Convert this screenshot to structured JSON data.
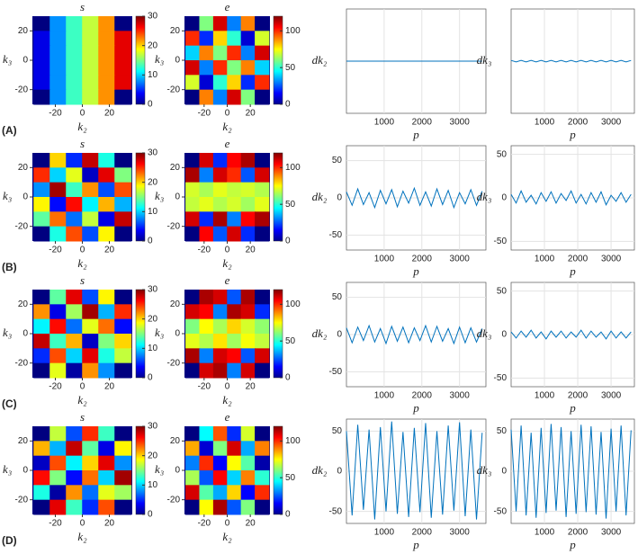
{
  "row_labels": [
    "(A)",
    "(B)",
    "(C)",
    "(D)"
  ],
  "chart_data": [
    {
      "type": "heatmap",
      "title": "s",
      "xlabel": "k₂",
      "ylabel": "k₃",
      "x": [
        -30,
        -18,
        -6,
        6,
        18,
        30
      ],
      "y": [
        25,
        15,
        5,
        -5,
        -15,
        -25
      ],
      "z": [
        [
          0,
          8,
          13,
          17,
          22,
          0
        ],
        [
          3,
          8,
          13,
          17,
          22,
          27
        ],
        [
          3,
          8,
          13,
          17,
          22,
          27
        ],
        [
          3,
          8,
          13,
          17,
          22,
          27
        ],
        [
          3,
          8,
          13,
          17,
          22,
          27
        ],
        [
          0,
          8,
          13,
          17,
          22,
          0
        ]
      ],
      "xlim": [
        -37,
        37
      ],
      "ylim": [
        -30,
        30
      ],
      "xticks": [
        -20,
        0,
        20
      ],
      "yticks": [
        -20,
        0,
        20
      ],
      "clim": [
        0,
        30
      ],
      "cticks": [
        0,
        10,
        20,
        30
      ]
    },
    {
      "type": "heatmap",
      "title": "e",
      "xlabel": "k₂",
      "ylabel": "k₃",
      "x": [
        -30,
        -18,
        -6,
        6,
        18,
        30
      ],
      "y": [
        25,
        15,
        5,
        -5,
        -15,
        -25
      ],
      "z": [
        [
          0,
          60,
          110,
          30,
          90,
          0
        ],
        [
          100,
          20,
          80,
          50,
          10,
          70
        ],
        [
          40,
          90,
          60,
          100,
          30,
          110
        ],
        [
          110,
          30,
          100,
          60,
          90,
          40
        ],
        [
          70,
          10,
          50,
          80,
          20,
          100
        ],
        [
          0,
          90,
          30,
          110,
          60,
          0
        ]
      ],
      "xlim": [
        -37,
        37
      ],
      "ylim": [
        -30,
        30
      ],
      "xticks": [
        -20,
        0,
        20
      ],
      "yticks": [
        -20,
        0,
        20
      ],
      "clim": [
        0,
        120
      ],
      "cticks": [
        0,
        50,
        100
      ]
    },
    {
      "type": "line",
      "xlabel": "p",
      "ylabel": "dk₂",
      "x": [
        0,
        150,
        300,
        450,
        600,
        750,
        900,
        1050,
        1200,
        1350,
        1500,
        1650,
        1800,
        1950,
        2100,
        2250,
        2400,
        2550,
        2700,
        2850,
        3000,
        3150,
        3300,
        3450,
        3600
      ],
      "values": [
        0,
        0,
        0,
        0,
        0,
        0,
        0,
        0,
        0,
        0,
        0,
        0,
        0,
        0,
        0,
        0,
        0,
        0,
        0,
        0,
        0,
        0,
        0,
        0,
        0
      ],
      "color": "#0072bd",
      "xlim": [
        0,
        3700
      ],
      "ylim": [
        -70,
        70
      ],
      "xticks": [
        1000,
        2000,
        3000
      ],
      "grid": true
    },
    {
      "type": "line",
      "xlabel": "p",
      "ylabel": "dk₃",
      "x": [
        0,
        150,
        300,
        450,
        600,
        750,
        900,
        1050,
        1200,
        1350,
        1500,
        1650,
        1800,
        1950,
        2100,
        2250,
        2400,
        2550,
        2700,
        2850,
        3000,
        3150,
        3300,
        3450,
        3600
      ],
      "values": [
        1,
        -1,
        1,
        -1,
        1,
        -1,
        1,
        -1,
        1,
        -1,
        1,
        -1,
        1,
        -1,
        1,
        -1,
        1,
        -1,
        1,
        -1,
        1,
        -1,
        1,
        -1,
        1
      ],
      "color": "#0072bd",
      "xlim": [
        0,
        3700
      ],
      "ylim": [
        -70,
        70
      ],
      "xticks": [
        1000,
        2000,
        3000
      ],
      "grid": true
    },
    {
      "type": "heatmap",
      "title": "s",
      "xlabel": "k₂",
      "ylabel": "k₃",
      "x": [
        -30,
        -18,
        -6,
        6,
        18,
        30
      ],
      "y": [
        25,
        15,
        5,
        -5,
        -15,
        -25
      ],
      "z": [
        [
          0,
          20,
          5,
          28,
          12,
          0
        ],
        [
          25,
          10,
          18,
          2,
          27,
          15
        ],
        [
          8,
          29,
          13,
          22,
          6,
          24
        ],
        [
          19,
          4,
          26,
          11,
          21,
          9
        ],
        [
          14,
          23,
          7,
          17,
          3,
          28
        ],
        [
          0,
          12,
          24,
          6,
          19,
          0
        ]
      ],
      "xlim": [
        -37,
        37
      ],
      "ylim": [
        -30,
        30
      ],
      "xticks": [
        -20,
        0,
        20
      ],
      "yticks": [
        -20,
        0,
        20
      ],
      "clim": [
        0,
        30
      ],
      "cticks": [
        0,
        10,
        20,
        30
      ]
    },
    {
      "type": "heatmap",
      "title": "e",
      "xlabel": "k₂",
      "ylabel": "k₃",
      "x": [
        -30,
        -18,
        -6,
        6,
        18,
        30
      ],
      "y": [
        25,
        15,
        5,
        -5,
        -15,
        -25
      ],
      "z": [
        [
          0,
          110,
          20,
          105,
          115,
          0
        ],
        [
          115,
          30,
          110,
          100,
          25,
          110
        ],
        [
          70,
          65,
          72,
          68,
          70,
          66
        ],
        [
          68,
          72,
          66,
          70,
          64,
          72
        ],
        [
          110,
          20,
          115,
          30,
          105,
          115
        ],
        [
          0,
          105,
          25,
          110,
          20,
          0
        ]
      ],
      "xlim": [
        -37,
        37
      ],
      "ylim": [
        -30,
        30
      ],
      "xticks": [
        -20,
        0,
        20
      ],
      "yticks": [
        -20,
        0,
        20
      ],
      "clim": [
        0,
        120
      ],
      "cticks": [
        0,
        50,
        100
      ]
    },
    {
      "type": "line",
      "xlabel": "p",
      "ylabel": "dk₂",
      "x": [
        0,
        150,
        300,
        450,
        600,
        750,
        900,
        1050,
        1200,
        1350,
        1500,
        1650,
        1800,
        1950,
        2100,
        2250,
        2400,
        2550,
        2700,
        2850,
        3000,
        3150,
        3300,
        3450,
        3600
      ],
      "values": [
        8,
        -10,
        12,
        -9,
        7,
        -13,
        10,
        -8,
        11,
        -12,
        9,
        -7,
        13,
        -10,
        8,
        -11,
        12,
        -9,
        10,
        -13,
        7,
        -8,
        11,
        -10,
        9
      ],
      "color": "#0072bd",
      "xlim": [
        0,
        3700
      ],
      "ylim": [
        -70,
        70
      ],
      "xticks": [
        1000,
        2000,
        3000
      ],
      "yticks": [
        -50,
        0,
        50
      ],
      "grid": true
    },
    {
      "type": "line",
      "xlabel": "p",
      "ylabel": "dk₃",
      "x": [
        0,
        150,
        300,
        450,
        600,
        750,
        900,
        1050,
        1200,
        1350,
        1500,
        1650,
        1800,
        1950,
        2100,
        2250,
        2400,
        2550,
        2700,
        2850,
        3000,
        3150,
        3300,
        3450,
        3600
      ],
      "values": [
        4,
        -6,
        8,
        -5,
        3,
        -7,
        6,
        -4,
        7,
        -6,
        5,
        -3,
        8,
        -6,
        4,
        -7,
        6,
        -5,
        7,
        -8,
        3,
        -4,
        6,
        -5,
        4
      ],
      "color": "#0072bd",
      "xlim": [
        0,
        3700
      ],
      "ylim": [
        -60,
        60
      ],
      "xticks": [
        1000,
        2000,
        3000
      ],
      "yticks": [
        -50,
        0,
        50
      ],
      "grid": true
    },
    {
      "type": "heatmap",
      "title": "s",
      "xlabel": "k₂",
      "ylabel": "k₃",
      "x": [
        -30,
        -18,
        -6,
        6,
        18,
        30
      ],
      "y": [
        25,
        15,
        5,
        -5,
        -15,
        -25
      ],
      "z": [
        [
          0,
          14,
          27,
          6,
          19,
          0
        ],
        [
          22,
          3,
          16,
          29,
          9,
          25
        ],
        [
          11,
          26,
          7,
          18,
          23,
          4
        ],
        [
          28,
          13,
          21,
          2,
          15,
          20
        ],
        [
          5,
          24,
          10,
          27,
          12,
          17
        ],
        [
          0,
          18,
          1,
          22,
          8,
          0
        ]
      ],
      "xlim": [
        -37,
        37
      ],
      "ylim": [
        -30,
        30
      ],
      "xticks": [
        -20,
        0,
        20
      ],
      "yticks": [
        -20,
        0,
        20
      ],
      "clim": [
        0,
        30
      ],
      "cticks": [
        0,
        10,
        20,
        30
      ]
    },
    {
      "type": "heatmap",
      "title": "e",
      "xlabel": "k₂",
      "ylabel": "k₃",
      "x": [
        -30,
        -18,
        -6,
        6,
        18,
        30
      ],
      "y": [
        25,
        15,
        5,
        -5,
        -15,
        -25
      ],
      "z": [
        [
          0,
          115,
          110,
          25,
          115,
          0
        ],
        [
          110,
          105,
          30,
          115,
          110,
          20
        ],
        [
          60,
          75,
          65,
          80,
          70,
          62
        ],
        [
          72,
          66,
          78,
          64,
          74,
          68
        ],
        [
          115,
          30,
          110,
          105,
          25,
          110
        ],
        [
          0,
          110,
          115,
          30,
          110,
          0
        ]
      ],
      "xlim": [
        -37,
        37
      ],
      "ylim": [
        -30,
        30
      ],
      "xticks": [
        -20,
        0,
        20
      ],
      "yticks": [
        -20,
        0,
        20
      ],
      "clim": [
        0,
        120
      ],
      "cticks": [
        0,
        50,
        100
      ]
    },
    {
      "type": "line",
      "xlabel": "p",
      "ylabel": "dk₂",
      "x": [
        0,
        150,
        300,
        450,
        600,
        750,
        900,
        1050,
        1200,
        1350,
        1500,
        1650,
        1800,
        1950,
        2100,
        2250,
        2400,
        2550,
        2700,
        2850,
        3000,
        3150,
        3300,
        3450,
        3600
      ],
      "values": [
        9,
        -11,
        10,
        -8,
        12,
        -10,
        8,
        -12,
        11,
        -9,
        10,
        -11,
        9,
        -8,
        12,
        -10,
        11,
        -9,
        8,
        -12,
        10,
        -11,
        9,
        -10,
        8
      ],
      "color": "#0072bd",
      "xlim": [
        0,
        3700
      ],
      "ylim": [
        -70,
        70
      ],
      "xticks": [
        1000,
        2000,
        3000
      ],
      "yticks": [
        -50,
        0,
        50
      ],
      "grid": true
    },
    {
      "type": "line",
      "xlabel": "p",
      "ylabel": "dk₃",
      "x": [
        0,
        150,
        300,
        450,
        600,
        750,
        900,
        1050,
        1200,
        1350,
        1500,
        1650,
        1800,
        1950,
        2100,
        2250,
        2400,
        2550,
        2700,
        2850,
        3000,
        3150,
        3300,
        3450,
        3600
      ],
      "values": [
        3,
        -4,
        4,
        -3,
        5,
        -4,
        3,
        -5,
        4,
        -3,
        4,
        -4,
        3,
        -3,
        5,
        -4,
        4,
        -3,
        3,
        -5,
        4,
        -4,
        3,
        -4,
        3
      ],
      "color": "#0072bd",
      "xlim": [
        0,
        3700
      ],
      "ylim": [
        -60,
        60
      ],
      "xticks": [
        1000,
        2000,
        3000
      ],
      "yticks": [
        -50,
        0,
        50
      ],
      "grid": true
    },
    {
      "type": "heatmap",
      "title": "s",
      "xlabel": "k₂",
      "ylabel": "k₃",
      "x": [
        -30,
        -18,
        -6,
        6,
        18,
        30
      ],
      "y": [
        25,
        15,
        5,
        -5,
        -15,
        -25
      ],
      "z": [
        [
          0,
          17,
          6,
          25,
          13,
          0
        ],
        [
          21,
          9,
          28,
          14,
          3,
          19
        ],
        [
          2,
          24,
          11,
          20,
          27,
          8
        ],
        [
          26,
          15,
          4,
          23,
          10,
          29
        ],
        [
          12,
          1,
          22,
          7,
          18,
          16
        ],
        [
          0,
          27,
          13,
          5,
          24,
          0
        ]
      ],
      "xlim": [
        -37,
        37
      ],
      "ylim": [
        -30,
        30
      ],
      "xticks": [
        -20,
        0,
        20
      ],
      "yticks": [
        -20,
        0,
        20
      ],
      "clim": [
        0,
        30
      ],
      "cticks": [
        0,
        10,
        20,
        30
      ]
    },
    {
      "type": "heatmap",
      "title": "e",
      "xlabel": "k₂",
      "ylabel": "k₃",
      "x": [
        -30,
        -18,
        -6,
        6,
        18,
        30
      ],
      "y": [
        25,
        15,
        5,
        -5,
        -15,
        -25
      ],
      "z": [
        [
          0,
          45,
          95,
          20,
          70,
          0
        ],
        [
          85,
          10,
          60,
          110,
          35,
          90
        ],
        [
          30,
          100,
          15,
          75,
          55,
          5
        ],
        [
          65,
          25,
          105,
          40,
          90,
          50
        ],
        [
          110,
          55,
          35,
          80,
          15,
          100
        ],
        [
          0,
          75,
          115,
          25,
          60,
          0
        ]
      ],
      "xlim": [
        -37,
        37
      ],
      "ylim": [
        -30,
        30
      ],
      "xticks": [
        -20,
        0,
        20
      ],
      "yticks": [
        -20,
        0,
        20
      ],
      "clim": [
        0,
        120
      ],
      "cticks": [
        0,
        50,
        100
      ]
    },
    {
      "type": "line",
      "xlabel": "p",
      "ylabel": "dk₂",
      "x": [
        0,
        150,
        300,
        450,
        600,
        750,
        900,
        1050,
        1200,
        1350,
        1500,
        1650,
        1800,
        1950,
        2100,
        2250,
        2400,
        2550,
        2700,
        2850,
        3000,
        3150,
        3300,
        3450,
        3600
      ],
      "values": [
        50,
        -55,
        58,
        -48,
        52,
        -60,
        55,
        -50,
        62,
        -53,
        49,
        -57,
        54,
        -51,
        60,
        -58,
        50,
        -54,
        57,
        -49,
        61,
        -56,
        52,
        -60,
        48
      ],
      "color": "#0072bd",
      "xlim": [
        0,
        3700
      ],
      "ylim": [
        -65,
        65
      ],
      "xticks": [
        1000,
        2000,
        3000
      ],
      "yticks": [
        -50,
        0,
        50
      ],
      "grid": true
    },
    {
      "type": "line",
      "xlabel": "p",
      "ylabel": "dk₃",
      "x": [
        0,
        150,
        300,
        450,
        600,
        750,
        900,
        1050,
        1200,
        1350,
        1500,
        1650,
        1800,
        1950,
        2100,
        2250,
        2400,
        2550,
        2700,
        2850,
        3000,
        3150,
        3300,
        3450,
        3600
      ],
      "values": [
        52,
        -50,
        57,
        -55,
        48,
        -58,
        54,
        -52,
        59,
        -49,
        55,
        -57,
        50,
        -53,
        58,
        -51,
        56,
        -54,
        49,
        -59,
        53,
        -50,
        57,
        -55,
        51
      ],
      "color": "#0072bd",
      "xlim": [
        0,
        3700
      ],
      "ylim": [
        -65,
        65
      ],
      "xticks": [
        1000,
        2000,
        3000
      ],
      "yticks": [
        -50,
        0,
        50
      ],
      "grid": true
    }
  ]
}
